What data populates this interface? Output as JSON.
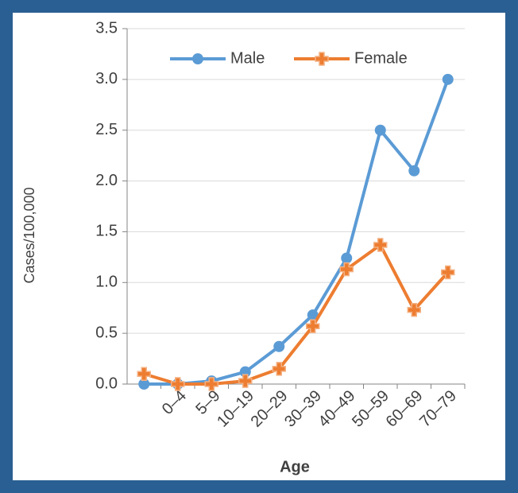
{
  "chart_data": {
    "type": "line",
    "x_label": "Age",
    "y_label": "Cases/100,000",
    "categories": [
      null,
      "0–4",
      "5–9",
      "10–19",
      "20–29",
      "30–39",
      "40–49",
      "50–59",
      "60–69",
      "70–79"
    ],
    "series": [
      {
        "name": "Male",
        "color": "#5b9bd5",
        "values": [
          0,
          0,
          0.03,
          0.12,
          0.37,
          0.68,
          1.24,
          2.5,
          2.1,
          3.0
        ]
      },
      {
        "name": "Female",
        "color": "#ed7d31",
        "values": [
          0.1,
          0,
          0,
          0.03,
          0.15,
          0.57,
          1.13,
          1.37,
          0.73,
          1.1
        ]
      }
    ],
    "ylim": [
      0,
      3.5
    ],
    "yticks": [
      {
        "value": 0,
        "label": "0.0"
      },
      0.5,
      {
        "value": 1,
        "label": "1.0"
      },
      1.5,
      {
        "value": 2,
        "label": "2.0"
      },
      2.5,
      {
        "value": 3,
        "label": "3.0"
      },
      3.5
    ],
    "grid": true,
    "legend": "top"
  }
}
